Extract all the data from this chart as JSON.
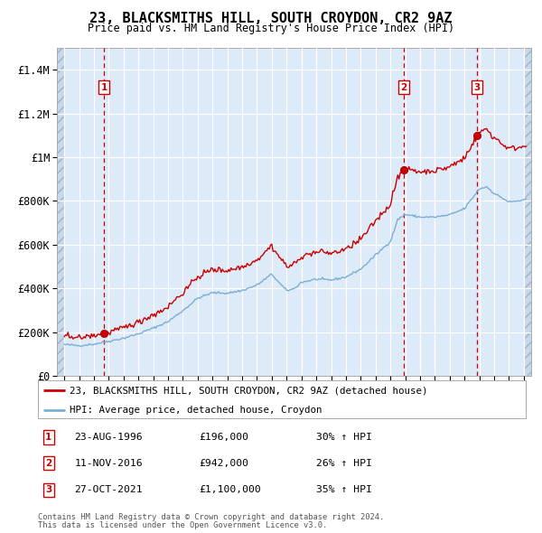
{
  "title": "23, BLACKSMITHS HILL, SOUTH CROYDON, CR2 9AZ",
  "subtitle": "Price paid vs. HM Land Registry's House Price Index (HPI)",
  "legend_property": "23, BLACKSMITHS HILL, SOUTH CROYDON, CR2 9AZ (detached house)",
  "legend_hpi": "HPI: Average price, detached house, Croydon",
  "sale_prices": [
    196000,
    942000,
    1100000
  ],
  "sale_pct": [
    "30% ↑ HPI",
    "26% ↑ HPI",
    "35% ↑ HPI"
  ],
  "sale_date_strs": [
    "23-AUG-1996",
    "11-NOV-2016",
    "27-OCT-2021"
  ],
  "table_prices": [
    "£196,000",
    "£942,000",
    "£1,100,000"
  ],
  "property_color": "#cc0000",
  "hpi_color": "#7aafd4",
  "vline_color": "#cc0000",
  "background_color": "#ddeaf7",
  "grid_color": "#ffffff",
  "ylim": [
    0,
    1500000
  ],
  "yticks": [
    0,
    200000,
    400000,
    600000,
    800000,
    1000000,
    1200000,
    1400000
  ],
  "ylabel_texts": [
    "£0",
    "£200K",
    "£400K",
    "£600K",
    "£800K",
    "£1M",
    "£1.2M",
    "£1.4M"
  ],
  "xlim_start": 1993.5,
  "xlim_end": 2025.5,
  "hatch_right_start": 2025.0,
  "hatch_left_end": 1994.0,
  "footer1": "Contains HM Land Registry data © Crown copyright and database right 2024.",
  "footer2": "This data is licensed under the Open Government Licence v3.0."
}
